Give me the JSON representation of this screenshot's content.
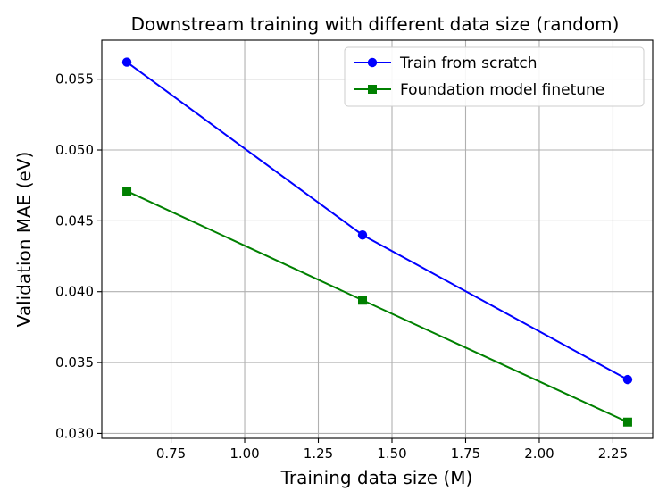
{
  "chart_data": {
    "type": "line",
    "title": "Downstream training with different data size (random)",
    "xlabel": "Training data size (M)",
    "ylabel": "Validation MAE (eV)",
    "xlim": [
      0.515,
      2.385
    ],
    "ylim": [
      0.02965,
      0.05775
    ],
    "xticks": [
      0.75,
      1.0,
      1.25,
      1.5,
      1.75,
      2.0,
      2.25
    ],
    "xtick_labels": [
      "0.75",
      "1.00",
      "1.25",
      "1.50",
      "1.75",
      "2.00",
      "2.25"
    ],
    "yticks": [
      0.03,
      0.035,
      0.04,
      0.045,
      0.05,
      0.055
    ],
    "ytick_labels": [
      "0.030",
      "0.035",
      "0.040",
      "0.045",
      "0.050",
      "0.055"
    ],
    "grid": true,
    "legend": "top-right",
    "x": [
      0.6,
      1.4,
      2.3
    ],
    "series": [
      {
        "name": "Train from scratch",
        "values": [
          0.0562,
          0.044,
          0.0338
        ],
        "color": "#0000ff",
        "marker": "circle"
      },
      {
        "name": "Foundation model finetune",
        "values": [
          0.0471,
          0.0394,
          0.0308
        ],
        "color": "#008000",
        "marker": "square"
      }
    ]
  }
}
